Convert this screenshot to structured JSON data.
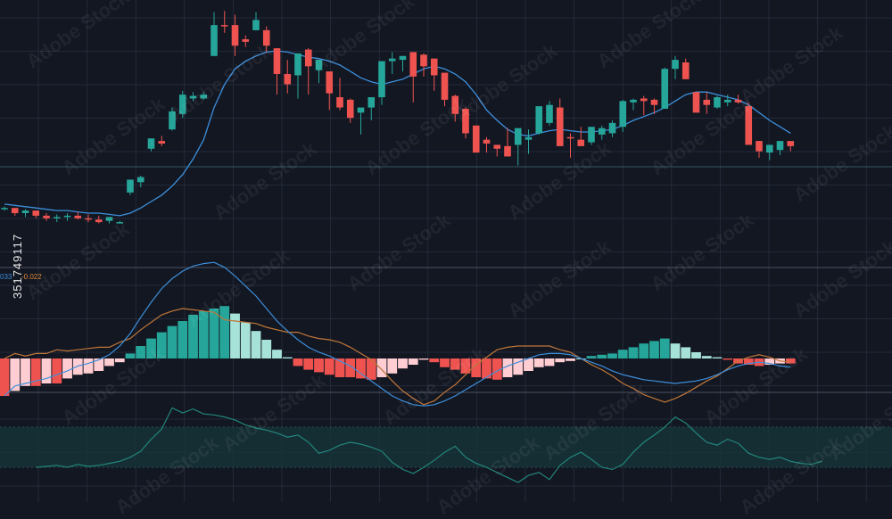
{
  "macd_labels": {
    "macd": "033",
    "signal": "-0.022"
  },
  "watermark": {
    "text": "Adobe Stock",
    "id": "351749117"
  },
  "colors": {
    "background": "#131722",
    "grid": "#2a3142",
    "bull": "#26a69a",
    "bear": "#ef5350",
    "ma": "#3d8fdb",
    "signal": "#c07638",
    "hist_pos_strong": "#26a69a",
    "hist_pos_weak": "#a7e2d8",
    "hist_neg_strong": "#ef5350",
    "hist_neg_weak": "#ffcdd2",
    "rsi": "#22857b",
    "rsi_band": "#16343a"
  },
  "chart_data": [
    {
      "type": "candlestick",
      "title": "",
      "x": [
        1,
        2,
        3,
        4,
        5,
        6,
        7,
        8,
        9,
        10,
        11,
        12,
        13,
        14,
        15,
        16,
        17,
        18,
        19,
        20,
        21,
        22,
        23,
        24,
        25,
        26,
        27,
        28,
        29,
        30,
        31,
        32,
        33,
        34,
        35,
        36,
        37,
        38,
        39,
        40,
        41,
        42,
        43,
        44,
        45,
        46,
        47,
        48,
        49,
        50,
        51,
        52,
        53,
        54,
        55,
        56,
        57,
        58,
        59,
        60,
        61,
        62,
        63,
        64,
        65,
        66,
        67,
        68,
        69,
        70,
        71,
        72,
        73,
        74,
        75,
        76
      ],
      "ohlc": [
        [
          83,
          80,
          81,
          82
        ],
        [
          82,
          76,
          82,
          78
        ],
        [
          81,
          75,
          78,
          80
        ],
        [
          80,
          74,
          80,
          76
        ],
        [
          78,
          72,
          76,
          74
        ],
        [
          77,
          71,
          74,
          75
        ],
        [
          78,
          72,
          75,
          76
        ],
        [
          79,
          73,
          76,
          74
        ],
        [
          77,
          71,
          74,
          73
        ],
        [
          76,
          70,
          73,
          71
        ],
        [
          74,
          70,
          72,
          75
        ],
        [
          72,
          70,
          71,
          71
        ],
        [
          104,
          92,
          94,
          104
        ],
        [
          107,
          98,
          102,
          106
        ],
        [
          136,
          126,
          128,
          136
        ],
        [
          138,
          130,
          134,
          132
        ],
        [
          160,
          142,
          143,
          157
        ],
        [
          173,
          152,
          155,
          170
        ],
        [
          172,
          165,
          167,
          169
        ],
        [
          172,
          166,
          167,
          170
        ],
        [
          234,
          200,
          200,
          224
        ],
        [
          235,
          218,
          224,
          223
        ],
        [
          232,
          200,
          224,
          208
        ],
        [
          216,
          207,
          213,
          211
        ],
        [
          234,
          220,
          220,
          228
        ],
        [
          223,
          203,
          220,
          208
        ],
        [
          206,
          170,
          206,
          186
        ],
        [
          197,
          171,
          186,
          178
        ],
        [
          202,
          167,
          185,
          202
        ],
        [
          206,
          170,
          205,
          192
        ],
        [
          196,
          179,
          189,
          197
        ],
        [
          183,
          158,
          188,
          171
        ],
        [
          183,
          158,
          168,
          160
        ],
        [
          167,
          148,
          166,
          152
        ],
        [
          156,
          139,
          156,
          160
        ],
        [
          165,
          150,
          160,
          168
        ],
        [
          196,
          162,
          168,
          196
        ],
        [
          203,
          186,
          196,
          198
        ],
        [
          200,
          188,
          197,
          200
        ],
        [
          196,
          164,
          203,
          184
        ],
        [
          202,
          184,
          201,
          192
        ],
        [
          198,
          173,
          198,
          185
        ],
        [
          186,
          161,
          187,
          166
        ],
        [
          170,
          149,
          169,
          155
        ],
        [
          160,
          136,
          159,
          140
        ],
        [
          146,
          127,
          146,
          125
        ],
        [
          137,
          125,
          135,
          132
        ],
        [
          131,
          122,
          131,
          128
        ],
        [
          144,
          122,
          130,
          122
        ],
        [
          136,
          115,
          131,
          144
        ],
        [
          143,
          124,
          135,
          137
        ],
        [
          159,
          139,
          140,
          161
        ],
        [
          165,
          146,
          148,
          162
        ],
        [
          167,
          130,
          160,
          130
        ],
        [
          140,
          121,
          137,
          136
        ],
        [
          145,
          131,
          135,
          130
        ],
        [
          143,
          131,
          133,
          145
        ],
        [
          146,
          135,
          139,
          144
        ],
        [
          150,
          137,
          140,
          148
        ],
        [
          166,
          141,
          145,
          165
        ],
        [
          167,
          158,
          164,
          166
        ],
        [
          169,
          154,
          167,
          165
        ],
        [
          167,
          155,
          166,
          162
        ],
        [
          191,
          159,
          159,
          190
        ],
        [
          200,
          182,
          190,
          197
        ],
        [
          198,
          182,
          195,
          182
        ],
        [
          171,
          160,
          172,
          156
        ],
        [
          172,
          155,
          166,
          162
        ],
        [
          169,
          159,
          160,
          168
        ],
        [
          170,
          161,
          164,
          166
        ],
        [
          170,
          163,
          166,
          164
        ],
        [
          164,
          146,
          161,
          131
        ],
        [
          134,
          121,
          134,
          126
        ],
        [
          129,
          119,
          125,
          131
        ],
        [
          131,
          123,
          127,
          134
        ],
        [
          133,
          126,
          134,
          130
        ]
      ],
      "ma": [
        85,
        84,
        83,
        82,
        81,
        80,
        80,
        79,
        78,
        78,
        77,
        76,
        78,
        82,
        87,
        92,
        99,
        108,
        120,
        135,
        160,
        178,
        190,
        196,
        200,
        203,
        204,
        203,
        201,
        199,
        198,
        196,
        193,
        188,
        183,
        180,
        178,
        180,
        182,
        186,
        190,
        192,
        190,
        186,
        180,
        170,
        158,
        150,
        143,
        139,
        138,
        140,
        142,
        143,
        142,
        141,
        141,
        142,
        143,
        146,
        150,
        153,
        156,
        160,
        165,
        170,
        172,
        172,
        170,
        168,
        166,
        162,
        156,
        150,
        145,
        140
      ]
    },
    {
      "type": "histogram",
      "series": [
        {
          "name": "",
          "values": [
            -0.03,
            -0.026,
            -0.022,
            -0.022,
            -0.02,
            -0.02,
            -0.016,
            -0.013,
            -0.012,
            -0.01,
            -0.006,
            -0.003,
            0.004,
            0.01,
            0.016,
            0.021,
            0.026,
            0.03,
            0.035,
            0.038,
            0.04,
            0.042,
            0.036,
            0.029,
            0.022,
            0.015,
            0.007,
            0.001,
            -0.006,
            -0.009,
            -0.011,
            -0.013,
            -0.015,
            -0.015,
            -0.016,
            -0.017,
            -0.015,
            -0.012,
            -0.008,
            -0.005,
            -0.001,
            -0.003,
            -0.007,
            -0.009,
            -0.012,
            -0.015,
            -0.016,
            -0.017,
            -0.015,
            -0.013,
            -0.01,
            -0.007,
            -0.006,
            -0.003,
            -0.002,
            0.0,
            0.002,
            0.003,
            0.004,
            0.007,
            0.009,
            0.012,
            0.014,
            0.016,
            0.012,
            0.009,
            0.005,
            0.002,
            0.001,
            -0.001,
            -0.004,
            -0.005,
            -0.006,
            -0.005,
            -0.004,
            -0.004
          ]
        },
        {
          "name": "",
          "values": [
            -0.03,
            -0.022,
            -0.02,
            -0.018,
            -0.016,
            -0.013,
            -0.01,
            -0.006,
            -0.004,
            -0.001,
            0.003,
            0.01,
            0.02,
            0.033,
            0.045,
            0.056,
            0.064,
            0.07,
            0.074,
            0.076,
            0.077,
            0.073,
            0.066,
            0.058,
            0.05,
            0.04,
            0.03,
            0.022,
            0.015,
            0.009,
            0.005,
            0.002,
            -0.002,
            -0.006,
            -0.012,
            -0.018,
            -0.024,
            -0.03,
            -0.034,
            -0.037,
            -0.038,
            -0.037,
            -0.034,
            -0.03,
            -0.025,
            -0.02,
            -0.015,
            -0.01,
            -0.006,
            -0.003,
            0.0,
            0.003,
            0.004,
            0.004,
            0.003,
            0.0,
            -0.003,
            -0.006,
            -0.01,
            -0.013,
            -0.015,
            -0.017,
            -0.018,
            -0.019,
            -0.02,
            -0.019,
            -0.018,
            -0.016,
            -0.013,
            -0.009,
            -0.006,
            -0.004,
            -0.003,
            -0.004,
            -0.006,
            -0.007
          ]
        },
        {
          "name": "",
          "values": [
            0.0,
            0.004,
            0.002,
            0.004,
            0.004,
            0.007,
            0.006,
            0.007,
            0.008,
            0.009,
            0.009,
            0.013,
            0.016,
            0.023,
            0.029,
            0.035,
            0.038,
            0.04,
            0.039,
            0.038,
            0.037,
            0.031,
            0.03,
            0.029,
            0.028,
            0.025,
            0.023,
            0.021,
            0.021,
            0.018,
            0.016,
            0.015,
            0.013,
            0.009,
            0.004,
            -0.001,
            -0.009,
            -0.018,
            -0.026,
            -0.032,
            -0.037,
            -0.034,
            -0.027,
            -0.021,
            -0.013,
            -0.005,
            0.001,
            0.007,
            0.009,
            0.01,
            0.01,
            0.01,
            0.01,
            0.007,
            0.005,
            0.0,
            -0.005,
            -0.009,
            -0.014,
            -0.02,
            -0.024,
            -0.029,
            -0.032,
            -0.035,
            -0.032,
            -0.028,
            -0.023,
            -0.018,
            -0.014,
            -0.008,
            -0.002,
            0.001,
            0.003,
            0.001,
            -0.002,
            -0.003
          ]
        }
      ]
    },
    {
      "type": "line",
      "x": [
        1,
        2,
        3,
        4,
        5,
        6,
        7,
        8,
        9,
        10,
        11,
        12,
        13,
        14,
        15,
        16,
        17,
        18,
        19,
        20,
        21,
        22,
        23,
        24,
        25,
        26,
        27,
        28,
        29,
        30,
        31,
        32,
        33,
        34,
        35,
        36,
        37,
        38,
        39,
        40,
        41,
        42,
        43,
        44,
        45,
        46,
        47,
        48,
        49,
        50,
        51,
        52,
        53,
        54,
        55,
        56,
        57,
        58,
        59,
        60,
        61,
        62,
        63,
        64,
        65,
        66,
        67,
        68,
        69,
        70,
        71,
        72,
        73,
        74,
        75,
        76
      ],
      "series": [
        {
          "name": "",
          "values": [
            30,
            31,
            32,
            30,
            33,
            31,
            32,
            34,
            36,
            40,
            46,
            58,
            68,
            89,
            84,
            88,
            83,
            82,
            80,
            77,
            72,
            69,
            67,
            64,
            60,
            62,
            55,
            44,
            47,
            52,
            55,
            53,
            50,
            46,
            35,
            28,
            24,
            30,
            37,
            45,
            51,
            40,
            34,
            30,
            25,
            20,
            15,
            22,
            25,
            18,
            32,
            40,
            45,
            38,
            30,
            28,
            33,
            45,
            55,
            62,
            70,
            80,
            74,
            64,
            55,
            52,
            58,
            54,
            44,
            40,
            38,
            40,
            36,
            34,
            33,
            36
          ]
        }
      ],
      "ylim": [
        0,
        100
      ]
    }
  ]
}
